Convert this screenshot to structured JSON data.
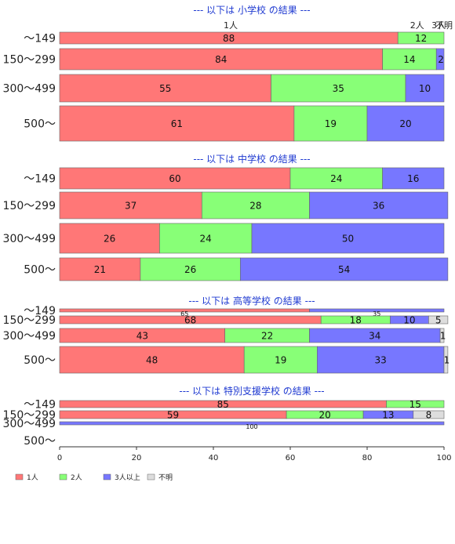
{
  "chart_data": {
    "type": "bar",
    "orientation": "horizontal",
    "stacked": true,
    "xlim": [
      0,
      100
    ],
    "x_ticks": [
      "0",
      "20",
      "40",
      "60",
      "80",
      "100"
    ],
    "categories": [
      "1人",
      "2人",
      "3人以上",
      "不明"
    ],
    "colors": {
      "1人": "#ff7777",
      "2人": "#88ff77",
      "3人以上": "#7777ff",
      "不明": "#dddddd"
    },
    "legend": {
      "placement": "bottom-left"
    },
    "column_headers": [
      "1人",
      "2人",
      "3人",
      "不明"
    ],
    "sections": [
      {
        "title": "--- 以下は 小学校 の結果 ---",
        "rows": [
          {
            "label": "〜149",
            "values": [
              88,
              12,
              0,
              0
            ]
          },
          {
            "label": "150〜299",
            "values": [
              84,
              14,
              2,
              0
            ]
          },
          {
            "label": "300〜499",
            "values": [
              55,
              35,
              10,
              0
            ]
          },
          {
            "label": "500〜",
            "values": [
              61,
              19,
              20,
              0
            ]
          }
        ]
      },
      {
        "title": "--- 以下は 中学校 の結果 ---",
        "rows": [
          {
            "label": "〜149",
            "values": [
              60,
              24,
              16,
              0
            ]
          },
          {
            "label": "150〜299",
            "values": [
              37,
              28,
              36,
              0
            ]
          },
          {
            "label": "300〜499",
            "values": [
              26,
              24,
              50,
              0
            ]
          },
          {
            "label": "500〜",
            "values": [
              21,
              26,
              54,
              0
            ]
          }
        ]
      },
      {
        "title": "--- 以下は 高等学校 の結果 ---",
        "rows": [
          {
            "label": "〜149",
            "values": [
              65,
              0,
              35,
              0
            ]
          },
          {
            "label": "150〜299",
            "values": [
              68,
              18,
              10,
              5
            ]
          },
          {
            "label": "300〜499",
            "values": [
              43,
              22,
              34,
              1
            ]
          },
          {
            "label": "500〜",
            "values": [
              48,
              19,
              33,
              1
            ]
          }
        ]
      },
      {
        "title": "--- 以下は 特別支援学校 の結果 ---",
        "rows": [
          {
            "label": "〜149",
            "values": [
              85,
              15,
              0,
              0
            ]
          },
          {
            "label": "150〜299",
            "values": [
              59,
              20,
              13,
              8
            ]
          },
          {
            "label": "300〜499",
            "values": [
              0,
              0,
              100,
              0
            ]
          },
          {
            "label": "500〜",
            "values": [
              0,
              0,
              0,
              0
            ]
          }
        ]
      }
    ]
  }
}
